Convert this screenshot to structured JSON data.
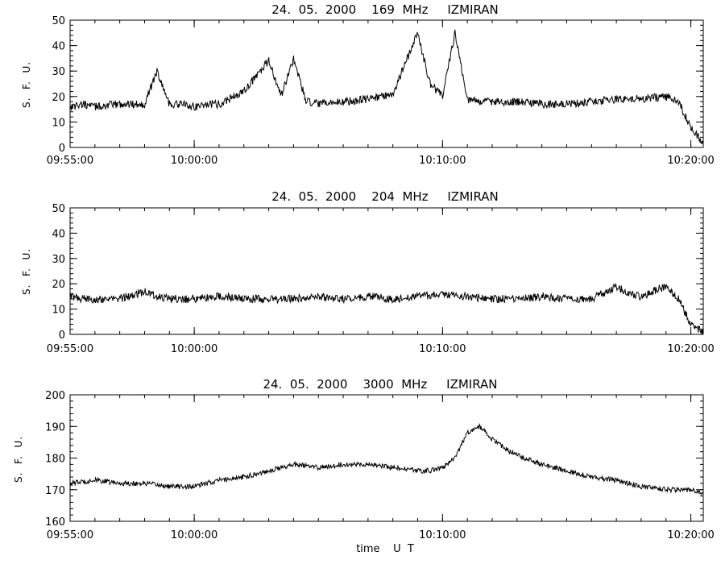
{
  "chart_data": [
    {
      "type": "line",
      "title": "24.  05.  2000    169  MHz     IZMIRAN",
      "ylabel": "S.  F.  U.",
      "xlabel": "",
      "x_tick_labels": [
        "09:55:00",
        "10:00:00",
        "10:10:00",
        "10:20:00"
      ],
      "y_tick_labels": [
        "0",
        "10",
        "20",
        "30",
        "40",
        "50"
      ],
      "ylim": [
        0,
        50
      ],
      "xlim": [
        "09:55:00",
        "10:20:30"
      ],
      "series": [
        {
          "x": [
            "09:55:00",
            "09:55:30",
            "09:56:00",
            "09:57:00",
            "09:58:00",
            "09:58:30",
            "09:59:00",
            "09:59:30",
            "10:00:00",
            "10:00:30",
            "10:01:00",
            "10:02:00",
            "10:03:00",
            "10:03:30",
            "10:04:00",
            "10:04:30",
            "10:05:00",
            "10:06:00",
            "10:07:00",
            "10:08:00",
            "10:09:00",
            "10:09:30",
            "10:10:00",
            "10:10:30",
            "10:11:00",
            "10:11:30",
            "10:12:00",
            "10:13:00",
            "10:14:00",
            "10:15:00",
            "10:16:00",
            "10:17:00",
            "10:18:00",
            "10:19:00",
            "10:19:30",
            "10:20:00",
            "10:20:30"
          ],
          "values": [
            16,
            17,
            16,
            17,
            17,
            30,
            17,
            17,
            16,
            17,
            17,
            22,
            34,
            20,
            35,
            18,
            17,
            18,
            19,
            21,
            45,
            25,
            20,
            45,
            19,
            18,
            18,
            18,
            17,
            17,
            18,
            19,
            19,
            20,
            18,
            8,
            2
          ]
        }
      ]
    },
    {
      "type": "line",
      "title": "24.  05.  2000    204  MHz     IZMIRAN",
      "ylabel": "S.  F.  U.",
      "xlabel": "",
      "x_tick_labels": [
        "09:55:00",
        "10:00:00",
        "10:10:00",
        "10:20:00"
      ],
      "y_tick_labels": [
        "0",
        "10",
        "20",
        "30",
        "40",
        "50"
      ],
      "ylim": [
        0,
        50
      ],
      "xlim": [
        "09:55:00",
        "10:20:30"
      ],
      "series": [
        {
          "x": [
            "09:55:00",
            "09:55:30",
            "09:56:00",
            "09:57:00",
            "09:58:00",
            "09:58:30",
            "09:59:00",
            "10:00:00",
            "10:01:00",
            "10:02:00",
            "10:03:00",
            "10:04:00",
            "10:05:00",
            "10:06:00",
            "10:07:00",
            "10:08:00",
            "10:09:00",
            "10:10:00",
            "10:11:00",
            "10:12:00",
            "10:13:00",
            "10:14:00",
            "10:15:00",
            "10:16:00",
            "10:17:00",
            "10:17:30",
            "10:18:00",
            "10:19:00",
            "10:19:30",
            "10:20:00",
            "10:20:30"
          ],
          "values": [
            15,
            14,
            14,
            14,
            17,
            15,
            14,
            14,
            15,
            14,
            14,
            14,
            15,
            14,
            15,
            14,
            15,
            16,
            15,
            14,
            14,
            15,
            14,
            14,
            19,
            16,
            15,
            19,
            14,
            4,
            1
          ]
        }
      ]
    },
    {
      "type": "line",
      "title": "24.  05.  2000    3000  MHz     IZMIRAN",
      "ylabel": "S.  F.  U.",
      "xlabel": "time    U  T",
      "x_tick_labels": [
        "09:55:00",
        "10:00:00",
        "10:10:00",
        "10:20:00"
      ],
      "y_tick_labels": [
        "160",
        "170",
        "180",
        "190",
        "200"
      ],
      "ylim": [
        160,
        200
      ],
      "xlim": [
        "09:55:00",
        "10:20:30"
      ],
      "series": [
        {
          "x": [
            "09:55:00",
            "09:56:00",
            "09:57:00",
            "09:58:00",
            "09:59:00",
            "10:00:00",
            "10:01:00",
            "10:02:00",
            "10:03:00",
            "10:04:00",
            "10:05:00",
            "10:06:00",
            "10:07:00",
            "10:08:00",
            "10:09:00",
            "10:09:30",
            "10:10:00",
            "10:10:30",
            "10:11:00",
            "10:11:30",
            "10:12:00",
            "10:12:30",
            "10:13:00",
            "10:14:00",
            "10:15:00",
            "10:16:00",
            "10:17:00",
            "10:18:00",
            "10:19:00",
            "10:20:00",
            "10:20:30"
          ],
          "values": [
            172,
            173,
            172,
            172,
            171,
            171,
            173,
            174,
            176,
            178,
            177,
            178,
            178,
            177,
            176,
            176,
            177,
            180,
            188,
            190,
            186,
            183,
            181,
            178,
            176,
            174,
            173,
            171,
            170,
            170,
            169
          ]
        }
      ]
    }
  ]
}
